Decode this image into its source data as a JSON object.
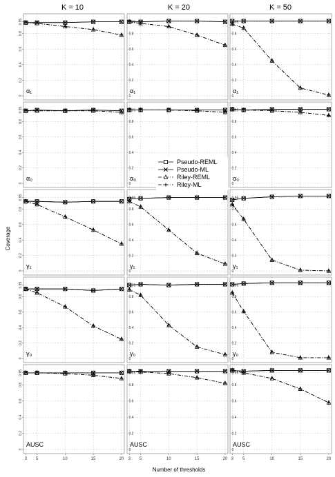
{
  "chart_data": {
    "type": "line",
    "column_titles": [
      "K = 10",
      "K = 20",
      "K = 50"
    ],
    "row_labels": [
      "α₁",
      "α₀",
      "γ₁",
      "γ₀",
      "AUSC"
    ],
    "ylabel": "Coverage",
    "xlabel": "Number of thresholds",
    "x": [
      3,
      5,
      10,
      15,
      20
    ],
    "x_ticks": [
      3,
      5,
      10,
      15,
      20
    ],
    "y_ticks": [
      "0",
      "0.2",
      "0.4",
      "0.6",
      "0.8",
      "0.95"
    ],
    "ylim": [
      0,
      1
    ],
    "grid": true,
    "legend_entries": [
      "Pseudo-REML",
      "Pseudo-ML",
      "Riley-REML",
      "Riley-ML"
    ],
    "panels": [
      {
        "row": 0,
        "col": 0,
        "label": "α₁",
        "series": [
          {
            "name": "Pseudo-REML",
            "values": [
              0.94,
              0.94,
              0.94,
              0.95,
              0.95
            ]
          },
          {
            "name": "Pseudo-ML",
            "values": [
              0.94,
              0.94,
              0.94,
              0.95,
              0.95
            ]
          },
          {
            "name": "Riley-REML",
            "values": [
              0.94,
              0.93,
              0.89,
              0.85,
              0.78
            ]
          },
          {
            "name": "Riley-ML",
            "values": [
              0.94,
              0.93,
              0.89,
              0.85,
              0.78
            ]
          }
        ]
      },
      {
        "row": 0,
        "col": 1,
        "label": "α₁",
        "series": [
          {
            "name": "Pseudo-REML",
            "values": [
              0.95,
              0.95,
              0.96,
              0.96,
              0.95
            ]
          },
          {
            "name": "Pseudo-ML",
            "values": [
              0.95,
              0.95,
              0.96,
              0.96,
              0.95
            ]
          },
          {
            "name": "Riley-REML",
            "values": [
              0.95,
              0.93,
              0.89,
              0.78,
              0.65
            ]
          },
          {
            "name": "Riley-ML",
            "values": [
              0.95,
              0.93,
              0.89,
              0.78,
              0.65
            ]
          }
        ]
      },
      {
        "row": 0,
        "col": 2,
        "label": "α₁",
        "series": [
          {
            "name": "Pseudo-REML",
            "values": [
              0.96,
              0.96,
              0.96,
              0.96,
              0.96
            ]
          },
          {
            "name": "Pseudo-ML",
            "values": [
              0.96,
              0.96,
              0.96,
              0.96,
              0.96
            ]
          },
          {
            "name": "Riley-REML",
            "values": [
              0.92,
              0.87,
              0.45,
              0.1,
              0.01
            ]
          },
          {
            "name": "Riley-ML",
            "values": [
              0.92,
              0.87,
              0.45,
              0.1,
              0.01
            ]
          }
        ]
      },
      {
        "row": 1,
        "col": 0,
        "label": "α₀",
        "series": [
          {
            "name": "Pseudo-REML",
            "values": [
              0.94,
              0.95,
              0.94,
              0.95,
              0.94
            ]
          },
          {
            "name": "Pseudo-ML",
            "values": [
              0.94,
              0.95,
              0.94,
              0.95,
              0.94
            ]
          },
          {
            "name": "Riley-REML",
            "values": [
              0.94,
              0.94,
              0.94,
              0.94,
              0.92
            ]
          },
          {
            "name": "Riley-ML",
            "values": [
              0.94,
              0.94,
              0.94,
              0.94,
              0.92
            ]
          }
        ]
      },
      {
        "row": 1,
        "col": 1,
        "label": "α₀",
        "series": [
          {
            "name": "Pseudo-REML",
            "values": [
              0.95,
              0.95,
              0.95,
              0.95,
              0.95
            ]
          },
          {
            "name": "Pseudo-ML",
            "values": [
              0.95,
              0.95,
              0.95,
              0.95,
              0.95
            ]
          },
          {
            "name": "Riley-REML",
            "values": [
              0.95,
              0.95,
              0.95,
              0.94,
              0.92
            ]
          },
          {
            "name": "Riley-ML",
            "values": [
              0.95,
              0.95,
              0.95,
              0.94,
              0.92
            ]
          }
        ]
      },
      {
        "row": 1,
        "col": 2,
        "label": "α₀",
        "series": [
          {
            "name": "Pseudo-REML",
            "values": [
              0.96,
              0.95,
              0.96,
              0.96,
              0.96
            ]
          },
          {
            "name": "Pseudo-ML",
            "values": [
              0.96,
              0.95,
              0.96,
              0.96,
              0.96
            ]
          },
          {
            "name": "Riley-REML",
            "values": [
              0.96,
              0.95,
              0.94,
              0.92,
              0.88
            ]
          },
          {
            "name": "Riley-ML",
            "values": [
              0.96,
              0.95,
              0.94,
              0.92,
              0.88
            ]
          }
        ]
      },
      {
        "row": 2,
        "col": 0,
        "label": "γ₁",
        "series": [
          {
            "name": "Pseudo-REML",
            "values": [
              0.9,
              0.9,
              0.89,
              0.9,
              0.9
            ]
          },
          {
            "name": "Pseudo-ML",
            "values": [
              0.9,
              0.9,
              0.89,
              0.9,
              0.9
            ]
          },
          {
            "name": "Riley-REML",
            "values": [
              0.9,
              0.86,
              0.7,
              0.53,
              0.35
            ]
          },
          {
            "name": "Riley-ML",
            "values": [
              0.9,
              0.86,
              0.7,
              0.53,
              0.35
            ]
          }
        ]
      },
      {
        "row": 2,
        "col": 1,
        "label": "γ₁",
        "series": [
          {
            "name": "Pseudo-REML",
            "values": [
              0.93,
              0.94,
              0.95,
              0.95,
              0.95
            ]
          },
          {
            "name": "Pseudo-ML",
            "values": [
              0.93,
              0.94,
              0.95,
              0.95,
              0.95
            ]
          },
          {
            "name": "Riley-REML",
            "values": [
              0.9,
              0.83,
              0.53,
              0.23,
              0.09
            ]
          },
          {
            "name": "Riley-ML",
            "values": [
              0.9,
              0.83,
              0.53,
              0.23,
              0.09
            ]
          }
        ]
      },
      {
        "row": 2,
        "col": 2,
        "label": "γ₁",
        "series": [
          {
            "name": "Pseudo-REML",
            "values": [
              0.92,
              0.94,
              0.96,
              0.97,
              0.97
            ]
          },
          {
            "name": "Pseudo-ML",
            "values": [
              0.92,
              0.94,
              0.96,
              0.97,
              0.97
            ]
          },
          {
            "name": "Riley-REML",
            "values": [
              0.86,
              0.67,
              0.14,
              0.01,
              0.0
            ]
          },
          {
            "name": "Riley-ML",
            "values": [
              0.86,
              0.67,
              0.14,
              0.01,
              0.0
            ]
          }
        ]
      },
      {
        "row": 3,
        "col": 0,
        "label": "γ₀",
        "series": [
          {
            "name": "Pseudo-REML",
            "values": [
              0.9,
              0.9,
              0.9,
              0.88,
              0.9
            ]
          },
          {
            "name": "Pseudo-ML",
            "values": [
              0.9,
              0.9,
              0.9,
              0.88,
              0.9
            ]
          },
          {
            "name": "Riley-REML",
            "values": [
              0.9,
              0.85,
              0.67,
              0.42,
              0.25
            ]
          },
          {
            "name": "Riley-ML",
            "values": [
              0.9,
              0.85,
              0.67,
              0.42,
              0.25
            ]
          }
        ]
      },
      {
        "row": 3,
        "col": 1,
        "label": "γ₀",
        "series": [
          {
            "name": "Pseudo-REML",
            "values": [
              0.95,
              0.96,
              0.95,
              0.96,
              0.96
            ]
          },
          {
            "name": "Pseudo-ML",
            "values": [
              0.95,
              0.96,
              0.95,
              0.96,
              0.96
            ]
          },
          {
            "name": "Riley-REML",
            "values": [
              0.89,
              0.82,
              0.43,
              0.15,
              0.05
            ]
          },
          {
            "name": "Riley-ML",
            "values": [
              0.89,
              0.82,
              0.43,
              0.15,
              0.05
            ]
          }
        ]
      },
      {
        "row": 3,
        "col": 2,
        "label": "γ₀",
        "series": [
          {
            "name": "Pseudo-REML",
            "values": [
              0.96,
              0.97,
              0.98,
              0.98,
              0.98
            ]
          },
          {
            "name": "Pseudo-ML",
            "values": [
              0.96,
              0.97,
              0.98,
              0.98,
              0.98
            ]
          },
          {
            "name": "Riley-REML",
            "values": [
              0.85,
              0.61,
              0.08,
              0.01,
              0.01
            ]
          },
          {
            "name": "Riley-ML",
            "values": [
              0.85,
              0.61,
              0.08,
              0.01,
              0.01
            ]
          }
        ]
      },
      {
        "row": 4,
        "col": 0,
        "label": "AUSC",
        "series": [
          {
            "name": "Pseudo-REML",
            "values": [
              0.95,
              0.95,
              0.95,
              0.95,
              0.95
            ]
          },
          {
            "name": "Pseudo-ML",
            "values": [
              0.95,
              0.95,
              0.95,
              0.95,
              0.95
            ]
          },
          {
            "name": "Riley-REML",
            "values": [
              0.95,
              0.95,
              0.94,
              0.92,
              0.88
            ]
          },
          {
            "name": "Riley-ML",
            "values": [
              0.95,
              0.95,
              0.94,
              0.92,
              0.88
            ]
          }
        ]
      },
      {
        "row": 4,
        "col": 1,
        "label": "AUSC",
        "series": [
          {
            "name": "Pseudo-REML",
            "values": [
              0.97,
              0.97,
              0.97,
              0.97,
              0.97
            ]
          },
          {
            "name": "Pseudo-ML",
            "values": [
              0.97,
              0.97,
              0.97,
              0.97,
              0.97
            ]
          },
          {
            "name": "Riley-REML",
            "values": [
              0.97,
              0.96,
              0.94,
              0.89,
              0.82
            ]
          },
          {
            "name": "Riley-ML",
            "values": [
              0.97,
              0.96,
              0.94,
              0.89,
              0.82
            ]
          }
        ]
      },
      {
        "row": 4,
        "col": 2,
        "label": "AUSC",
        "series": [
          {
            "name": "Pseudo-REML",
            "values": [
              0.98,
              0.97,
              0.98,
              0.98,
              0.98
            ]
          },
          {
            "name": "Pseudo-ML",
            "values": [
              0.98,
              0.97,
              0.98,
              0.98,
              0.98
            ]
          },
          {
            "name": "Riley-REML",
            "values": [
              0.98,
              0.95,
              0.88,
              0.75,
              0.58
            ]
          },
          {
            "name": "Riley-ML",
            "values": [
              0.98,
              0.95,
              0.88,
              0.75,
              0.58
            ]
          }
        ]
      }
    ]
  }
}
